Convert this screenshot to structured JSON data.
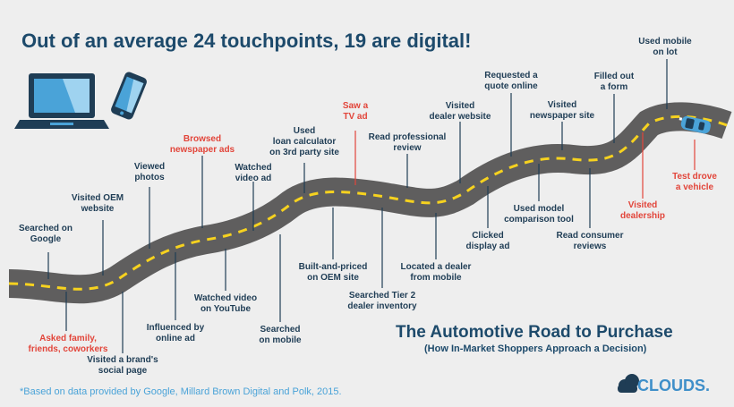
{
  "headline": "Out of an average 24 touchpoints, 19 are digital!",
  "title": "The Automotive Road to Purchase",
  "subtitle": "(How In-Market Shoppers Approach a Decision)",
  "footnote": "*Based on data provided by Google, Millard Brown Digital and Polk, 2015.",
  "logo": {
    "text": "CLOUDS."
  },
  "colors": {
    "navy": "#1f3d55",
    "red": "#e2453a",
    "road": "#5f5e5e",
    "stripe": "#f6d21f",
    "blue": "#4aa3d8"
  },
  "icons": [
    "laptop-icon",
    "phone-icon",
    "car-icon",
    "cloud-logo-icon"
  ],
  "touchpoints": [
    {
      "key": "searched-on-google",
      "label": "Searched on\nGoogle",
      "digital": true
    },
    {
      "key": "asked-family",
      "label": "Asked family,\nfriends, coworkers",
      "digital": false
    },
    {
      "key": "visited-oem-website",
      "label": "Visited OEM\nwebsite",
      "digital": true
    },
    {
      "key": "visited-brand-social",
      "label": "Visited a brand's\nsocial page",
      "digital": true
    },
    {
      "key": "viewed-photos",
      "label": "Viewed\nphotos",
      "digital": true
    },
    {
      "key": "influenced-online-ad",
      "label": "Influenced by\nonline ad",
      "digital": true
    },
    {
      "key": "browsed-newspaper-ads",
      "label": "Browsed\nnewspaper ads",
      "digital": false
    },
    {
      "key": "watched-video-youtube",
      "label": "Watched video\non YouTube",
      "digital": true
    },
    {
      "key": "watched-video-ad",
      "label": "Watched\nvideo ad",
      "digital": true
    },
    {
      "key": "searched-on-mobile",
      "label": "Searched\non mobile",
      "digital": true
    },
    {
      "key": "used-loan-calculator",
      "label": "Used\nloan calculator\non 3rd party site",
      "digital": true
    },
    {
      "key": "built-and-priced",
      "label": "Built-and-priced\non OEM site",
      "digital": true
    },
    {
      "key": "saw-tv-ad",
      "label": "Saw a\nTV ad",
      "digital": false
    },
    {
      "key": "searched-tier2",
      "label": "Searched Tier 2\ndealer inventory",
      "digital": true
    },
    {
      "key": "read-professional-review",
      "label": "Read professional\nreview",
      "digital": true
    },
    {
      "key": "located-dealer-mobile",
      "label": "Located a dealer\nfrom mobile",
      "digital": true
    },
    {
      "key": "visited-dealer-website",
      "label": "Visited\ndealer website",
      "digital": true
    },
    {
      "key": "clicked-display-ad",
      "label": "Clicked\ndisplay ad",
      "digital": true
    },
    {
      "key": "requested-quote-online",
      "label": "Requested a\nquote online",
      "digital": true
    },
    {
      "key": "used-model-comparison",
      "label": "Used model\ncomparison tool",
      "digital": true
    },
    {
      "key": "visited-newspaper-site",
      "label": "Visited\nnewspaper site",
      "digital": true
    },
    {
      "key": "read-consumer-reviews",
      "label": "Read consumer\nreviews",
      "digital": true
    },
    {
      "key": "filled-out-form",
      "label": "Filled out\na form",
      "digital": true
    },
    {
      "key": "visited-dealership",
      "label": "Visited\ndealership",
      "digital": false
    },
    {
      "key": "used-mobile-on-lot",
      "label": "Used mobile\non lot",
      "digital": true
    },
    {
      "key": "test-drove-vehicle",
      "label": "Test drove\na vehicle",
      "digital": false
    }
  ]
}
